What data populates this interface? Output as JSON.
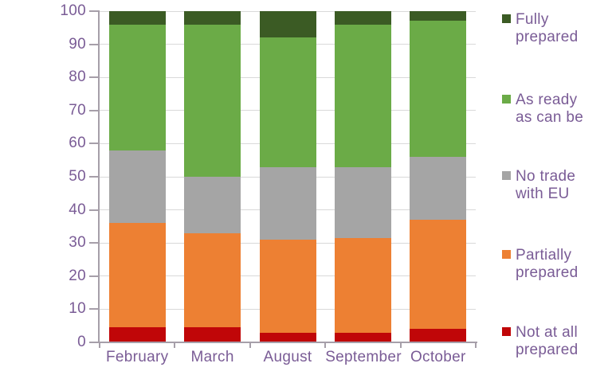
{
  "chart_data": {
    "type": "bar",
    "stacked": true,
    "units": "percent",
    "title": "",
    "xlabel": "",
    "ylabel": "",
    "categories": [
      "February",
      "March",
      "August",
      "September",
      "October"
    ],
    "series": [
      {
        "name": "Not at all prepared",
        "color": "#c00608",
        "values": [
          4.5,
          4.5,
          3,
          3,
          4
        ]
      },
      {
        "name": "Partially prepared",
        "color": "#ed8033",
        "values": [
          31.5,
          28.5,
          28,
          28.5,
          33
        ]
      },
      {
        "name": "No trade with EU",
        "color": "#a5a5a5",
        "values": [
          22,
          17,
          22,
          21.5,
          19
        ]
      },
      {
        "name": "As ready as can be",
        "color": "#6bab47",
        "values": [
          38,
          46,
          39,
          43,
          41
        ]
      },
      {
        "name": "Fully prepared",
        "color": "#3b5b24",
        "values": [
          4,
          4,
          8,
          4,
          3
        ]
      }
    ],
    "ylim": [
      0,
      100
    ],
    "yticks": [
      0,
      10,
      20,
      30,
      40,
      50,
      60,
      70,
      80,
      90,
      100
    ],
    "grid": true,
    "legend_position": "right",
    "legend": [
      {
        "name": "Fully prepared",
        "lines": [
          "Fully",
          "prepared"
        ]
      },
      {
        "name": "As ready as can be",
        "lines": [
          "As ready",
          "as can be"
        ]
      },
      {
        "name": "No trade with EU",
        "lines": [
          "No trade",
          "with EU"
        ]
      },
      {
        "name": "Partially prepared",
        "lines": [
          "Partially",
          "prepared"
        ]
      },
      {
        "name": "Not at all prepared",
        "lines": [
          "Not at all",
          "prepared"
        ]
      }
    ]
  },
  "colors": {
    "axis_text": "#7a5c96",
    "axis_line": "#a69fa9",
    "gridline": "#d9d9d9",
    "background": "#ffffff"
  }
}
